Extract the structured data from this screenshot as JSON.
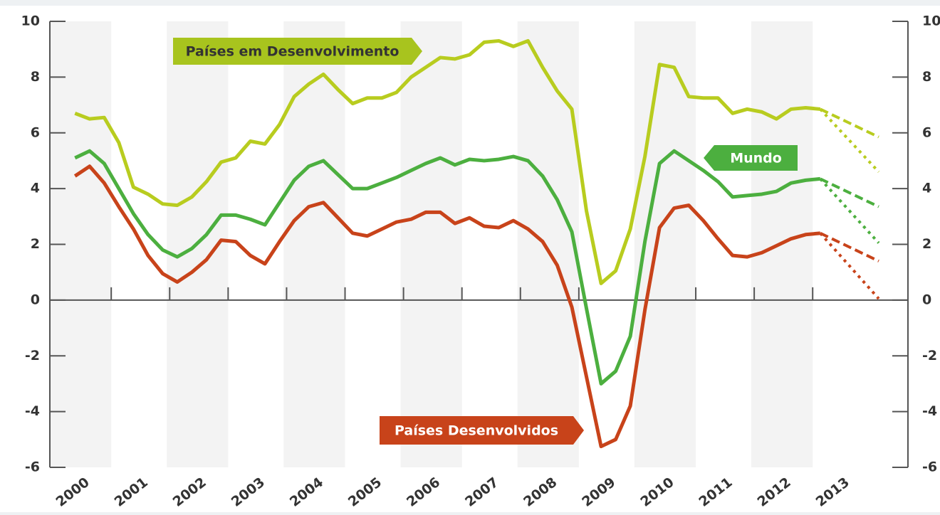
{
  "chart_data": {
    "type": "line",
    "x": [
      2000,
      2000.25,
      2000.5,
      2000.75,
      2001,
      2001.25,
      2001.5,
      2001.75,
      2002,
      2002.25,
      2002.5,
      2002.75,
      2003,
      2003.25,
      2003.5,
      2003.75,
      2004,
      2004.25,
      2004.5,
      2004.75,
      2005,
      2005.25,
      2005.5,
      2005.75,
      2006,
      2006.25,
      2006.5,
      2006.75,
      2007,
      2007.25,
      2007.5,
      2007.75,
      2008,
      2008.25,
      2008.5,
      2008.75,
      2009,
      2009.25,
      2009.5,
      2009.75,
      2010,
      2010.25,
      2010.5,
      2010.75,
      2011,
      2011.25,
      2011.5,
      2011.75,
      2012,
      2012.25,
      2012.5,
      2012.75
    ],
    "series": [
      {
        "name": "Países em Desenvolvimento",
        "color": "#b8cc1f",
        "values": [
          6.7,
          6.5,
          6.55,
          5.65,
          4.05,
          3.8,
          3.45,
          3.4,
          3.7,
          4.25,
          4.95,
          5.1,
          5.7,
          5.6,
          6.3,
          7.3,
          7.75,
          8.1,
          7.55,
          7.05,
          7.25,
          7.25,
          7.45,
          8.0,
          8.35,
          8.7,
          8.65,
          8.8,
          9.25,
          9.3,
          9.1,
          9.3,
          8.35,
          7.5,
          6.85,
          3.2,
          0.6,
          1.05,
          2.55,
          5.15,
          8.45,
          8.35,
          7.3,
          7.25,
          7.25,
          6.7,
          6.85,
          6.75,
          6.5,
          6.85,
          6.9,
          6.85
        ]
      },
      {
        "name": "Mundo",
        "color": "#4caf3f",
        "values": [
          5.1,
          5.35,
          4.9,
          4.0,
          3.1,
          2.35,
          1.8,
          1.55,
          1.85,
          2.35,
          3.05,
          3.05,
          2.9,
          2.7,
          3.5,
          4.3,
          4.8,
          5.0,
          4.5,
          4.0,
          4.0,
          4.2,
          4.4,
          4.65,
          4.9,
          5.1,
          4.85,
          5.05,
          5.0,
          5.05,
          5.15,
          5.0,
          4.45,
          3.6,
          2.45,
          -0.3,
          -3.0,
          -2.55,
          -1.3,
          2.1,
          4.9,
          5.35,
          5.0,
          4.65,
          4.25,
          3.7,
          3.75,
          3.8,
          3.9,
          4.2,
          4.3,
          4.35
        ]
      },
      {
        "name": "Países Desenvolvidos",
        "color": "#c8431a",
        "values": [
          4.45,
          4.8,
          4.2,
          3.35,
          2.55,
          1.6,
          0.95,
          0.65,
          1.0,
          1.45,
          2.15,
          2.1,
          1.6,
          1.3,
          2.1,
          2.85,
          3.35,
          3.5,
          2.95,
          2.4,
          2.3,
          2.55,
          2.8,
          2.9,
          3.15,
          3.15,
          2.75,
          2.95,
          2.65,
          2.6,
          2.85,
          2.55,
          2.1,
          1.25,
          -0.25,
          -2.75,
          -5.25,
          -5.0,
          -3.8,
          -0.35,
          2.6,
          3.3,
          3.4,
          2.85,
          2.2,
          1.6,
          1.55,
          1.7,
          1.95,
          2.2,
          2.35,
          2.4
        ]
      }
    ],
    "forecasts": [
      {
        "color": "#b8cc1f",
        "style": "dashed",
        "x": [
          2012.75,
          2013.75
        ],
        "values": [
          6.85,
          5.85
        ]
      },
      {
        "color": "#b8cc1f",
        "style": "dotted",
        "x": [
          2012.75,
          2013.75
        ],
        "values": [
          6.85,
          4.6
        ]
      },
      {
        "color": "#4caf3f",
        "style": "dashed",
        "x": [
          2012.75,
          2013.75
        ],
        "values": [
          4.35,
          3.35
        ]
      },
      {
        "color": "#4caf3f",
        "style": "dotted",
        "x": [
          2012.75,
          2013.75
        ],
        "values": [
          4.35,
          2.05
        ]
      },
      {
        "color": "#c8431a",
        "style": "dashed",
        "x": [
          2012.75,
          2013.75
        ],
        "values": [
          2.4,
          1.4
        ]
      },
      {
        "color": "#c8431a",
        "style": "dotted",
        "x": [
          2012.75,
          2013.75
        ],
        "values": [
          2.4,
          0.05
        ]
      }
    ],
    "xlim": [
      1999.57,
      2014.25
    ],
    "xticks": [
      2000,
      2001,
      2002,
      2003,
      2004,
      2005,
      2006,
      2007,
      2008,
      2009,
      2010,
      2011,
      2012,
      2013
    ],
    "ylim": [
      -6,
      10
    ],
    "yticks": [
      -6,
      -4,
      -2,
      0,
      2,
      4,
      6,
      8,
      10
    ]
  }
}
